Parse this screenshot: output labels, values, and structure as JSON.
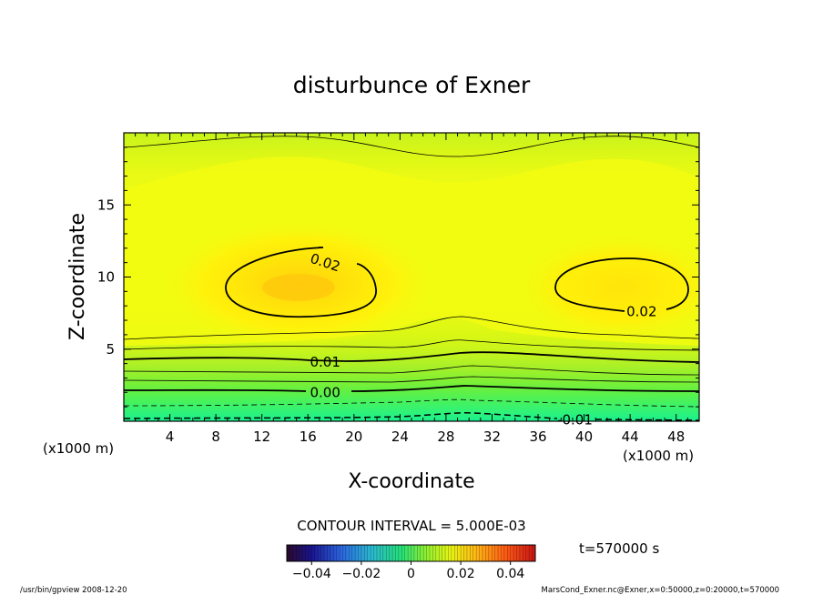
{
  "chart_data": {
    "type": "contour",
    "title": "disturbunce of Exner",
    "xlabel": "X-coordinate",
    "ylabel": "Z-coordinate",
    "x_unit_left": "(x1000 m)",
    "x_unit_right": "(x1000 m)",
    "xlim": [
      0,
      50
    ],
    "ylim": [
      0,
      20
    ],
    "x_ticks": [
      4,
      8,
      12,
      16,
      20,
      24,
      28,
      32,
      36,
      40,
      44,
      48
    ],
    "y_ticks": [
      5,
      10,
      15
    ],
    "contour_interval_text": "CONTOUR INTERVAL = 5.000E-03",
    "contour_labels": [
      {
        "text": "0.02",
        "x": 17.5,
        "z": 11.0
      },
      {
        "text": "0.02",
        "x": 45.0,
        "z": 7.6
      },
      {
        "text": "0.01",
        "x": 17.5,
        "z": 4.1
      },
      {
        "text": "0.00",
        "x": 17.5,
        "z": 2.0
      },
      {
        "text": "-0.01",
        "x": 39.2,
        "z": 0.1
      }
    ],
    "colorbar": {
      "min": -0.05,
      "max": 0.05,
      "tick_values": [
        -0.04,
        -0.02,
        0,
        0.02,
        0.04
      ],
      "tick_labels": [
        "−0.04",
        "−0.02",
        "0",
        "0.02",
        "0.04"
      ]
    },
    "time_label": "t=570000 s"
  },
  "footer": {
    "left": "/usr/bin/gpview   2008-12-20",
    "right": "MarsCond_Exner.nc@Exner,x=0:50000,z=0:20000,t=570000"
  }
}
